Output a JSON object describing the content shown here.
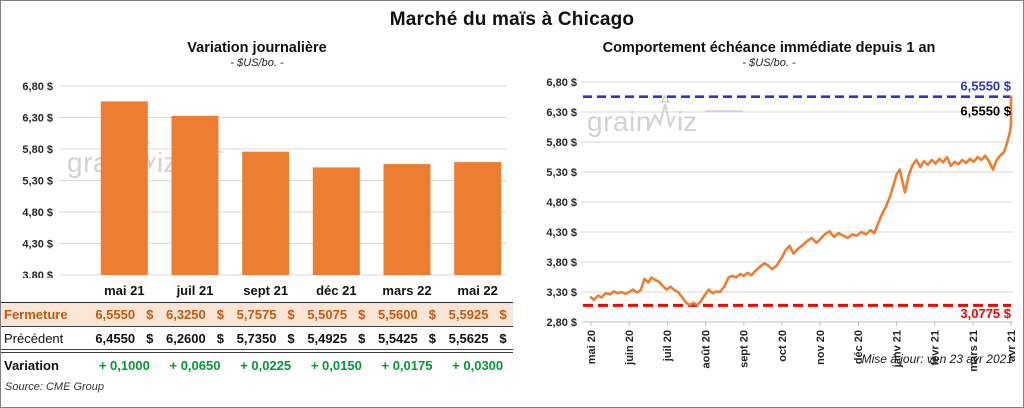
{
  "page": {
    "title": "Marché du maïs à Chicago",
    "source": "Source: CME Group",
    "updated": "Mise à jour: ven 23 avr 2021",
    "watermark": "grainwiz"
  },
  "colors": {
    "orange": "#ED7D31",
    "blue": "#3333CC",
    "red": "#FF0000",
    "green": "#009933",
    "fermeture_bg": "#FBE5D6",
    "fermeture_text": "#C55A11",
    "gridline": "#D9D9D9",
    "axis": "#BFBFBF",
    "watermark_gray": "#D2D2D2"
  },
  "chart_data": [
    {
      "type": "bar",
      "title": "Variation journalière",
      "subtitle": "- $US/bo. -",
      "categories": [
        "mai 21",
        "juil 21",
        "sept 21",
        "déc 21",
        "mars 22",
        "mai 22"
      ],
      "values": [
        6.555,
        6.325,
        5.7575,
        5.5075,
        5.56,
        5.5925
      ],
      "ylim": [
        3.8,
        6.8
      ],
      "grid": true,
      "bar_color": "#ED7D31",
      "yticks": [
        {
          "v": 6.8,
          "label": "6,80 $"
        },
        {
          "v": 6.3,
          "label": "6,30 $"
        },
        {
          "v": 5.8,
          "label": "5,80 $"
        },
        {
          "v": 5.3,
          "label": "5,30 $"
        },
        {
          "v": 4.8,
          "label": "4,80 $"
        },
        {
          "v": 4.3,
          "label": "4,30 $"
        },
        {
          "v": 3.8,
          "label": "3,80 $"
        }
      ]
    },
    {
      "type": "line",
      "title": "Comportement échéance immédiate depuis 1 an",
      "subtitle": "- $US/bo. -",
      "ylim": [
        2.8,
        6.8
      ],
      "grid": true,
      "legend_position": "none",
      "yticks": [
        {
          "v": 6.8,
          "label": "6,80 $"
        },
        {
          "v": 6.3,
          "label": "6,30 $"
        },
        {
          "v": 5.8,
          "label": "5,80 $"
        },
        {
          "v": 5.3,
          "label": "5,30 $"
        },
        {
          "v": 4.8,
          "label": "4,80 $"
        },
        {
          "v": 4.3,
          "label": "4,30 $"
        },
        {
          "v": 3.8,
          "label": "3,80 $"
        },
        {
          "v": 3.3,
          "label": "3,30 $"
        },
        {
          "v": 2.8,
          "label": "2,80 $"
        }
      ],
      "x_ticks": [
        "mai 20",
        "juin 20",
        "juil 20",
        "août 20",
        "sept 20",
        "oct 20",
        "nov 20",
        "déc 20",
        "janv 21",
        "févr 21",
        "mars 21",
        "avr 21"
      ],
      "annotations": {
        "high_line": {
          "value": 6.555,
          "label": "6,5550 $",
          "color": "#3333CC"
        },
        "last_value": {
          "value": 6.555,
          "label": "6,5550 $",
          "color": "#000000"
        },
        "low_line": {
          "value": 3.0775,
          "label": "3,0775 $",
          "color": "#FF0000"
        }
      },
      "series": [
        {
          "name": "échéance immédiate",
          "color": "#ED7D31",
          "points": [
            [
              0.0,
              3.21
            ],
            [
              0.08,
              3.17
            ],
            [
              0.18,
              3.24
            ],
            [
              0.28,
              3.21
            ],
            [
              0.38,
              3.28
            ],
            [
              0.5,
              3.26
            ],
            [
              0.6,
              3.31
            ],
            [
              0.7,
              3.28
            ],
            [
              0.8,
              3.3
            ],
            [
              0.9,
              3.27
            ],
            [
              1.0,
              3.3
            ],
            [
              1.1,
              3.34
            ],
            [
              1.2,
              3.29
            ],
            [
              1.3,
              3.33
            ],
            [
              1.4,
              3.52
            ],
            [
              1.5,
              3.46
            ],
            [
              1.58,
              3.54
            ],
            [
              1.68,
              3.5
            ],
            [
              1.78,
              3.47
            ],
            [
              1.88,
              3.4
            ],
            [
              1.98,
              3.34
            ],
            [
              2.08,
              3.39
            ],
            [
              2.18,
              3.33
            ],
            [
              2.28,
              3.3
            ],
            [
              2.38,
              3.22
            ],
            [
              2.48,
              3.13
            ],
            [
              2.58,
              3.08
            ],
            [
              2.68,
              3.12
            ],
            [
              2.78,
              3.08
            ],
            [
              2.88,
              3.15
            ],
            [
              2.98,
              3.25
            ],
            [
              3.08,
              3.34
            ],
            [
              3.18,
              3.28
            ],
            [
              3.28,
              3.31
            ],
            [
              3.38,
              3.3
            ],
            [
              3.5,
              3.4
            ],
            [
              3.6,
              3.54
            ],
            [
              3.7,
              3.57
            ],
            [
              3.8,
              3.54
            ],
            [
              3.9,
              3.6
            ],
            [
              4.0,
              3.57
            ],
            [
              4.1,
              3.62
            ],
            [
              4.2,
              3.58
            ],
            [
              4.3,
              3.65
            ],
            [
              4.42,
              3.72
            ],
            [
              4.54,
              3.78
            ],
            [
              4.64,
              3.74
            ],
            [
              4.74,
              3.68
            ],
            [
              4.86,
              3.74
            ],
            [
              5.0,
              3.88
            ],
            [
              5.1,
              4.0
            ],
            [
              5.2,
              4.07
            ],
            [
              5.3,
              3.94
            ],
            [
              5.42,
              4.02
            ],
            [
              5.54,
              4.08
            ],
            [
              5.66,
              4.15
            ],
            [
              5.78,
              4.2
            ],
            [
              5.9,
              4.12
            ],
            [
              6.0,
              4.18
            ],
            [
              6.12,
              4.26
            ],
            [
              6.24,
              4.31
            ],
            [
              6.36,
              4.22
            ],
            [
              6.48,
              4.28
            ],
            [
              6.6,
              4.24
            ],
            [
              6.72,
              4.2
            ],
            [
              6.84,
              4.26
            ],
            [
              6.96,
              4.24
            ],
            [
              7.08,
              4.3
            ],
            [
              7.2,
              4.26
            ],
            [
              7.32,
              4.33
            ],
            [
              7.42,
              4.28
            ],
            [
              7.52,
              4.45
            ],
            [
              7.62,
              4.6
            ],
            [
              7.72,
              4.72
            ],
            [
              7.82,
              4.88
            ],
            [
              7.92,
              5.08
            ],
            [
              8.0,
              5.26
            ],
            [
              8.08,
              5.34
            ],
            [
              8.16,
              5.12
            ],
            [
              8.22,
              4.96
            ],
            [
              8.32,
              5.25
            ],
            [
              8.42,
              5.42
            ],
            [
              8.52,
              5.5
            ],
            [
              8.62,
              5.38
            ],
            [
              8.72,
              5.48
            ],
            [
              8.82,
              5.42
            ],
            [
              8.92,
              5.5
            ],
            [
              9.02,
              5.44
            ],
            [
              9.12,
              5.52
            ],
            [
              9.22,
              5.46
            ],
            [
              9.32,
              5.55
            ],
            [
              9.42,
              5.4
            ],
            [
              9.52,
              5.47
            ],
            [
              9.62,
              5.43
            ],
            [
              9.72,
              5.5
            ],
            [
              9.82,
              5.45
            ],
            [
              9.92,
              5.52
            ],
            [
              10.02,
              5.47
            ],
            [
              10.12,
              5.55
            ],
            [
              10.22,
              5.5
            ],
            [
              10.32,
              5.57
            ],
            [
              10.42,
              5.48
            ],
            [
              10.52,
              5.34
            ],
            [
              10.62,
              5.5
            ],
            [
              10.72,
              5.58
            ],
            [
              10.8,
              5.62
            ],
            [
              10.86,
              5.72
            ],
            [
              10.92,
              5.85
            ],
            [
              10.96,
              5.95
            ],
            [
              11.0,
              6.08
            ],
            [
              11.04,
              6.25
            ],
            [
              11.08,
              6.555
            ]
          ]
        }
      ]
    }
  ],
  "table": {
    "columns": [
      "mai 21",
      "juil 21",
      "sept 21",
      "déc 21",
      "mars 22",
      "mai 22"
    ],
    "rows": [
      {
        "label": "Fermeture",
        "style": "fermeture",
        "unit": "$",
        "values": [
          "6,5550",
          "6,3250",
          "5,7575",
          "5,5075",
          "5,5600",
          "5,5925"
        ]
      },
      {
        "label": "Précédent",
        "style": "precedent",
        "unit": "$",
        "values": [
          "6,4550",
          "6,2600",
          "5,7350",
          "5,4925",
          "5,5425",
          "5,5625"
        ]
      },
      {
        "label": "Variation",
        "style": "variation",
        "unit": "",
        "values": [
          "+ 0,1000",
          "+ 0,0650",
          "+ 0,0225",
          "+ 0,0150",
          "+ 0,0175",
          "+ 0,0300"
        ]
      }
    ]
  }
}
